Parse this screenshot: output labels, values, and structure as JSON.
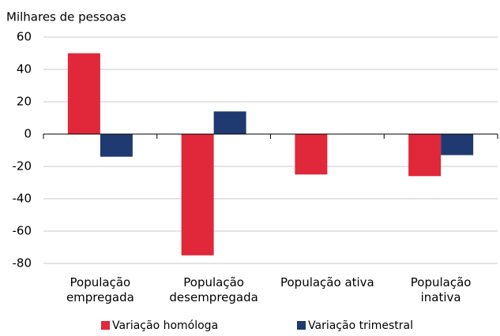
{
  "chart_data": {
    "type": "bar",
    "y_label": "Milhares de pessoas",
    "categories": [
      "População empregada",
      "População desempregada",
      "População ativa",
      "População inativa"
    ],
    "series": [
      {
        "name": "Variação homóloga",
        "color": "#e0283a",
        "values": [
          50,
          -75,
          -25,
          -26
        ]
      },
      {
        "name": "Variação trimestral",
        "color": "#1f3a70",
        "values": [
          -14,
          14,
          0,
          -13
        ]
      }
    ],
    "ylim": [
      -80,
      60
    ],
    "yticks": [
      -80,
      -60,
      -40,
      -20,
      0,
      20,
      40,
      60
    ],
    "grid": true
  }
}
